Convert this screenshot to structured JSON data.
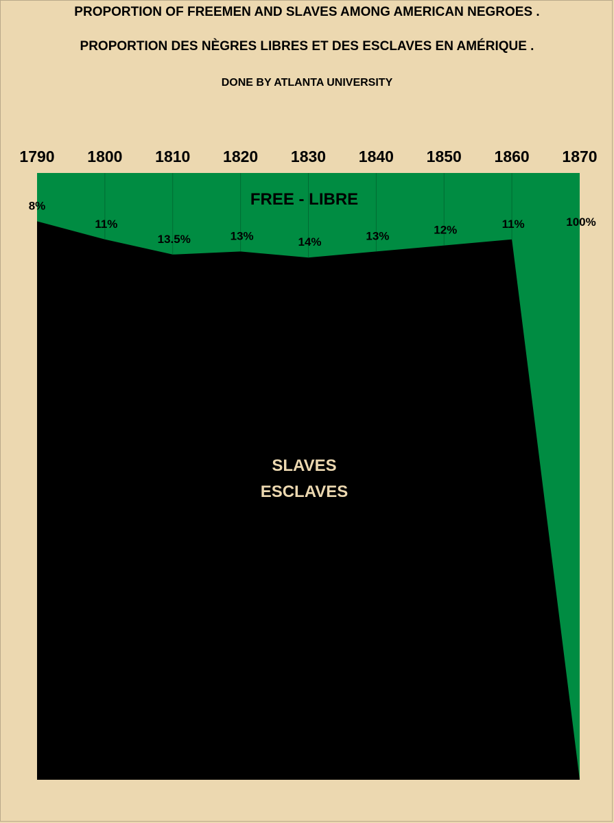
{
  "title": "PROPORTION OF FREEMEN AND SLAVES AMONG AMERICAN NEGROES .",
  "title_fr": "PROPORTION DES NÈGRES LIBRES ET DES ESCLAVES EN AMÉRIQUE .",
  "subtitle": "DONE BY ATLANTA UNIVERSITY",
  "colors": {
    "background": "#ecd8b0",
    "free": "#008c42",
    "slaves": "#000000"
  },
  "chart_data": {
    "type": "area",
    "categories": [
      "1790",
      "1800",
      "1810",
      "1820",
      "1830",
      "1840",
      "1850",
      "1860",
      "1870"
    ],
    "x_axis_position": "top",
    "series": [
      {
        "name": "FREE - LIBRE",
        "values": [
          8,
          11,
          13.5,
          13,
          14,
          13,
          12,
          11,
          100
        ]
      },
      {
        "name": "SLAVES / ESCLAVES",
        "values": [
          92,
          89,
          86.5,
          87,
          86,
          87,
          88,
          89,
          0
        ]
      }
    ],
    "data_labels": [
      "8%",
      "11%",
      "13.5%",
      "13%",
      "14%",
      "13%",
      "12%",
      "11%",
      "100%"
    ],
    "area_labels": {
      "free": "FREE - LIBRE",
      "slaves_line1": "SLAVES",
      "slaves_line2": "ESCLAVES"
    },
    "ylim": [
      0,
      100
    ],
    "stacked": true,
    "grid": "vertical"
  }
}
